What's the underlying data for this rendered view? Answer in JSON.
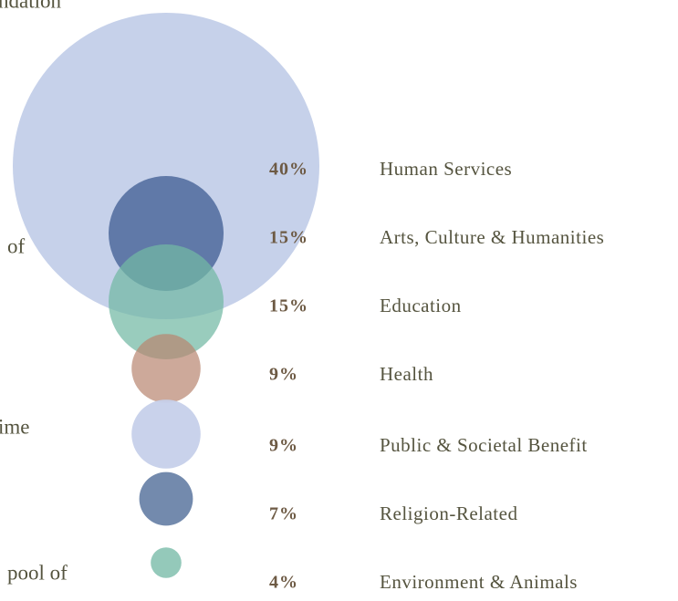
{
  "chart_data": {
    "type": "bubble",
    "categories": [
      "Human Services",
      "Arts, Culture & Humanities",
      "Education",
      "Health",
      "Public & Societal Benefit",
      "Religion-Related",
      "Environment & Animals"
    ],
    "values": [
      40,
      15,
      15,
      9,
      9,
      7,
      4
    ],
    "value_labels": [
      "40%",
      "15%",
      "15%",
      "9%",
      "9%",
      "7%",
      "4%"
    ],
    "colors": [
      "#c6d1ea",
      "#4d6a9c",
      "#72b8a3",
      "#b8856f",
      "#c6d0ea",
      "#6c84a9",
      "#8ec6b6"
    ],
    "annotations": [
      "ndation",
      "of",
      "ime",
      "pool of"
    ]
  }
}
